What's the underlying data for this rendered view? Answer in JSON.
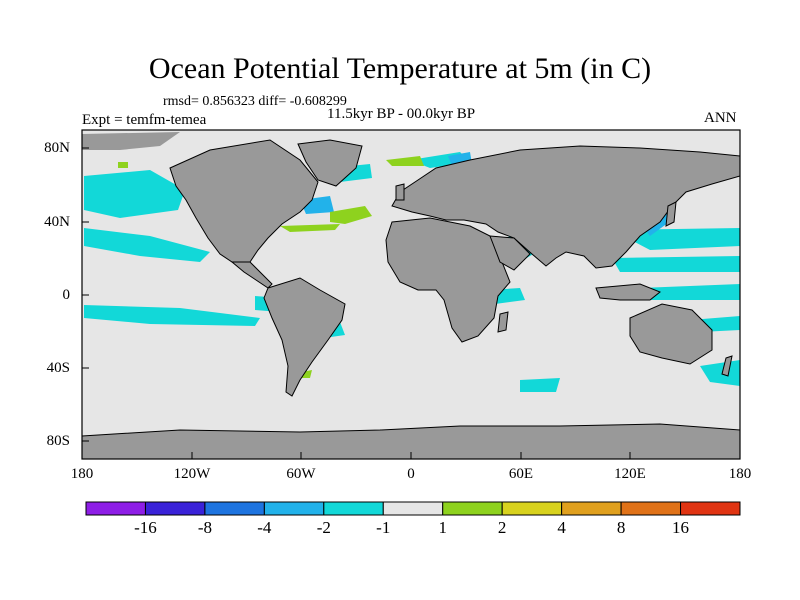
{
  "title": "Ocean Potential Temperature at 5m (in C)",
  "stats": "rmsd= 0.856323 diff= -0.608299",
  "experiment": "Expt = temfm-temea",
  "period": "11.5kyr BP - 00.0kyr BP",
  "season": "ANN",
  "x_ticks": [
    "180",
    "120W",
    "60W",
    "0",
    "60E",
    "120E",
    "180"
  ],
  "y_ticks": [
    "80N",
    "40N",
    "0",
    "40S",
    "80S"
  ],
  "colorbar": {
    "colors": [
      "#8e1ee6",
      "#3a22d8",
      "#1e74e0",
      "#22b2ea",
      "#12d8d8",
      "#e6e6e6",
      "#8ed21e",
      "#d8d21e",
      "#e0a01e",
      "#e07218",
      "#e03412"
    ],
    "labels": [
      "-16",
      "-8",
      "-4",
      "-2",
      "-1",
      "1",
      "2",
      "4",
      "8",
      "16"
    ]
  }
}
